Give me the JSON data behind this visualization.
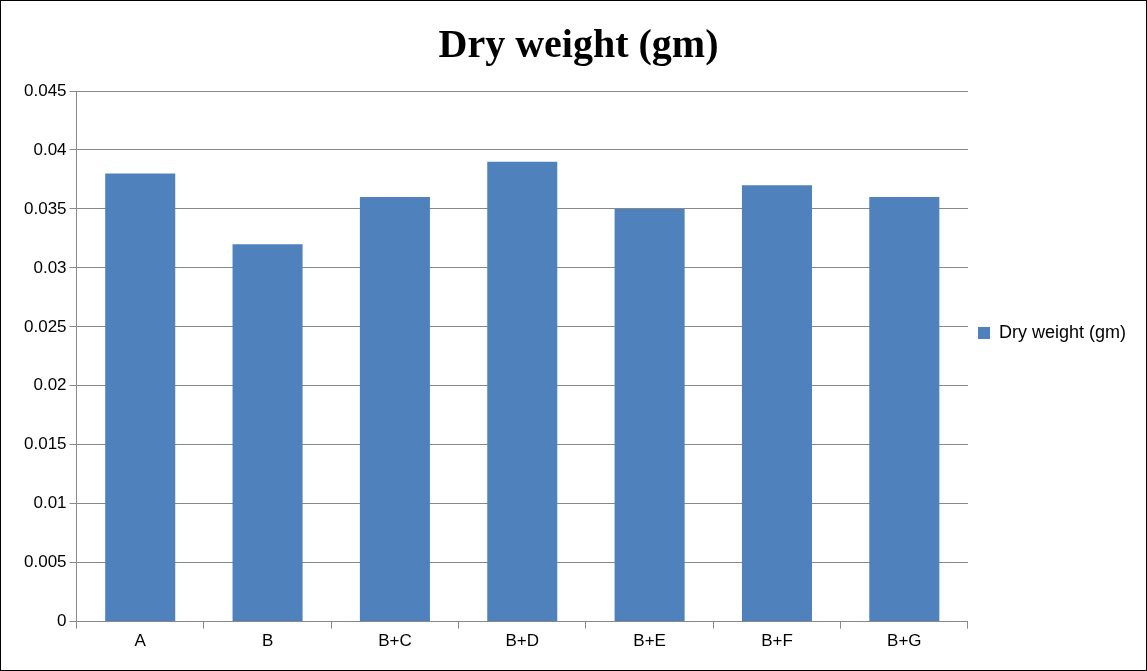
{
  "chart_data": {
    "type": "bar",
    "title": "Dry weight (gm)",
    "categories": [
      "A",
      "B",
      "B+C",
      "B+D",
      "B+E",
      "B+F",
      "B+G"
    ],
    "series": [
      {
        "name": "Dry weight (gm)",
        "color": "#4f81bd",
        "values": [
          0.038,
          0.032,
          0.036,
          0.039,
          0.035,
          0.037,
          0.036
        ]
      }
    ],
    "ylim": [
      0,
      0.045
    ],
    "yticks": [
      0,
      0.005,
      0.01,
      0.015,
      0.02,
      0.025,
      0.03,
      0.035,
      0.04,
      0.045
    ],
    "grid": "y",
    "legend": "right"
  }
}
